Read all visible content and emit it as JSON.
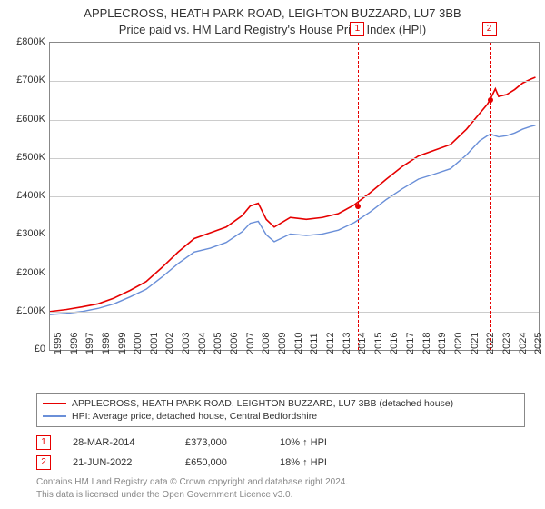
{
  "title": {
    "line1": "APPLECROSS, HEATH PARK ROAD, LEIGHTON BUZZARD, LU7 3BB",
    "line2": "Price paid vs. HM Land Registry's House Price Index (HPI)",
    "fontsize": 13
  },
  "chart": {
    "type": "line",
    "background_color": "#ffffff",
    "border_color": "#888888",
    "grid_color": "#cccccc",
    "y": {
      "min": 0,
      "max": 800000,
      "tick_step": 100000,
      "ticks": [
        "£0",
        "£100K",
        "£200K",
        "£300K",
        "£400K",
        "£500K",
        "£600K",
        "£700K",
        "£800K"
      ],
      "label_fontsize": 11
    },
    "x": {
      "min": 1995,
      "max": 2025.5,
      "ticks": [
        1995,
        1996,
        1997,
        1998,
        1999,
        2000,
        2001,
        2002,
        2003,
        2004,
        2005,
        2006,
        2007,
        2008,
        2009,
        2010,
        2011,
        2012,
        2013,
        2014,
        2015,
        2016,
        2017,
        2018,
        2019,
        2020,
        2021,
        2022,
        2023,
        2024,
        2025
      ],
      "label_fontsize": 11,
      "rotation": -90
    },
    "series": [
      {
        "name": "APPLECROSS, HEATH PARK ROAD, LEIGHTON BUZZARD, LU7 3BB (detached house)",
        "color": "#e60000",
        "width": 1.6,
        "data": [
          [
            1995,
            100000
          ],
          [
            1996,
            105000
          ],
          [
            1997,
            112000
          ],
          [
            1998,
            120000
          ],
          [
            1999,
            135000
          ],
          [
            2000,
            155000
          ],
          [
            2001,
            178000
          ],
          [
            2002,
            215000
          ],
          [
            2003,
            255000
          ],
          [
            2004,
            290000
          ],
          [
            2005,
            305000
          ],
          [
            2006,
            320000
          ],
          [
            2007,
            350000
          ],
          [
            2007.5,
            375000
          ],
          [
            2008,
            382000
          ],
          [
            2008.5,
            340000
          ],
          [
            2009,
            320000
          ],
          [
            2010,
            345000
          ],
          [
            2011,
            340000
          ],
          [
            2012,
            345000
          ],
          [
            2013,
            355000
          ],
          [
            2014,
            378000
          ],
          [
            2015,
            410000
          ],
          [
            2016,
            445000
          ],
          [
            2017,
            478000
          ],
          [
            2018,
            505000
          ],
          [
            2019,
            520000
          ],
          [
            2020,
            535000
          ],
          [
            2021,
            575000
          ],
          [
            2021.8,
            615000
          ],
          [
            2022.3,
            640000
          ],
          [
            2022.47,
            652000
          ],
          [
            2022.8,
            680000
          ],
          [
            2023,
            660000
          ],
          [
            2023.5,
            665000
          ],
          [
            2024,
            678000
          ],
          [
            2024.5,
            695000
          ],
          [
            2025,
            705000
          ],
          [
            2025.3,
            710000
          ]
        ]
      },
      {
        "name": "HPI: Average price, detached house, Central Bedfordshire",
        "color": "#6a8fd8",
        "width": 1.4,
        "data": [
          [
            1995,
            92000
          ],
          [
            1996,
            95000
          ],
          [
            1997,
            100000
          ],
          [
            1998,
            108000
          ],
          [
            1999,
            120000
          ],
          [
            2000,
            138000
          ],
          [
            2001,
            158000
          ],
          [
            2002,
            190000
          ],
          [
            2003,
            225000
          ],
          [
            2004,
            255000
          ],
          [
            2005,
            265000
          ],
          [
            2006,
            280000
          ],
          [
            2007,
            308000
          ],
          [
            2007.5,
            330000
          ],
          [
            2008,
            335000
          ],
          [
            2008.5,
            300000
          ],
          [
            2009,
            282000
          ],
          [
            2010,
            302000
          ],
          [
            2011,
            298000
          ],
          [
            2012,
            302000
          ],
          [
            2013,
            312000
          ],
          [
            2014,
            332000
          ],
          [
            2015,
            360000
          ],
          [
            2016,
            392000
          ],
          [
            2017,
            420000
          ],
          [
            2018,
            445000
          ],
          [
            2019,
            458000
          ],
          [
            2020,
            472000
          ],
          [
            2021,
            508000
          ],
          [
            2021.8,
            544000
          ],
          [
            2022.3,
            558000
          ],
          [
            2022.5,
            562000
          ],
          [
            2023,
            555000
          ],
          [
            2023.5,
            558000
          ],
          [
            2024,
            565000
          ],
          [
            2024.5,
            575000
          ],
          [
            2025,
            582000
          ],
          [
            2025.3,
            585000
          ]
        ]
      }
    ],
    "markers": [
      {
        "id": "1",
        "x": 2014.24,
        "box_top_offset": -22,
        "sale_point_y": 373000,
        "sale_point_color": "#e60000"
      },
      {
        "id": "2",
        "x": 2022.47,
        "box_top_offset": -22,
        "sale_point_y": 650000,
        "sale_point_color": "#e60000"
      }
    ]
  },
  "legend": {
    "border_color": "#888888",
    "items": [
      {
        "color": "#e60000",
        "label": "APPLECROSS, HEATH PARK ROAD, LEIGHTON BUZZARD, LU7 3BB (detached house)"
      },
      {
        "color": "#6a8fd8",
        "label": "HPI: Average price, detached house, Central Bedfordshire"
      }
    ]
  },
  "sales": [
    {
      "id": "1",
      "date": "28-MAR-2014",
      "price": "£373,000",
      "pct": "10% ↑ HPI"
    },
    {
      "id": "2",
      "date": "21-JUN-2022",
      "price": "£650,000",
      "pct": "18% ↑ HPI"
    }
  ],
  "footer": {
    "line1": "Contains HM Land Registry data © Crown copyright and database right 2024.",
    "line2": "This data is licensed under the Open Government Licence v3.0.",
    "color": "#888888"
  }
}
